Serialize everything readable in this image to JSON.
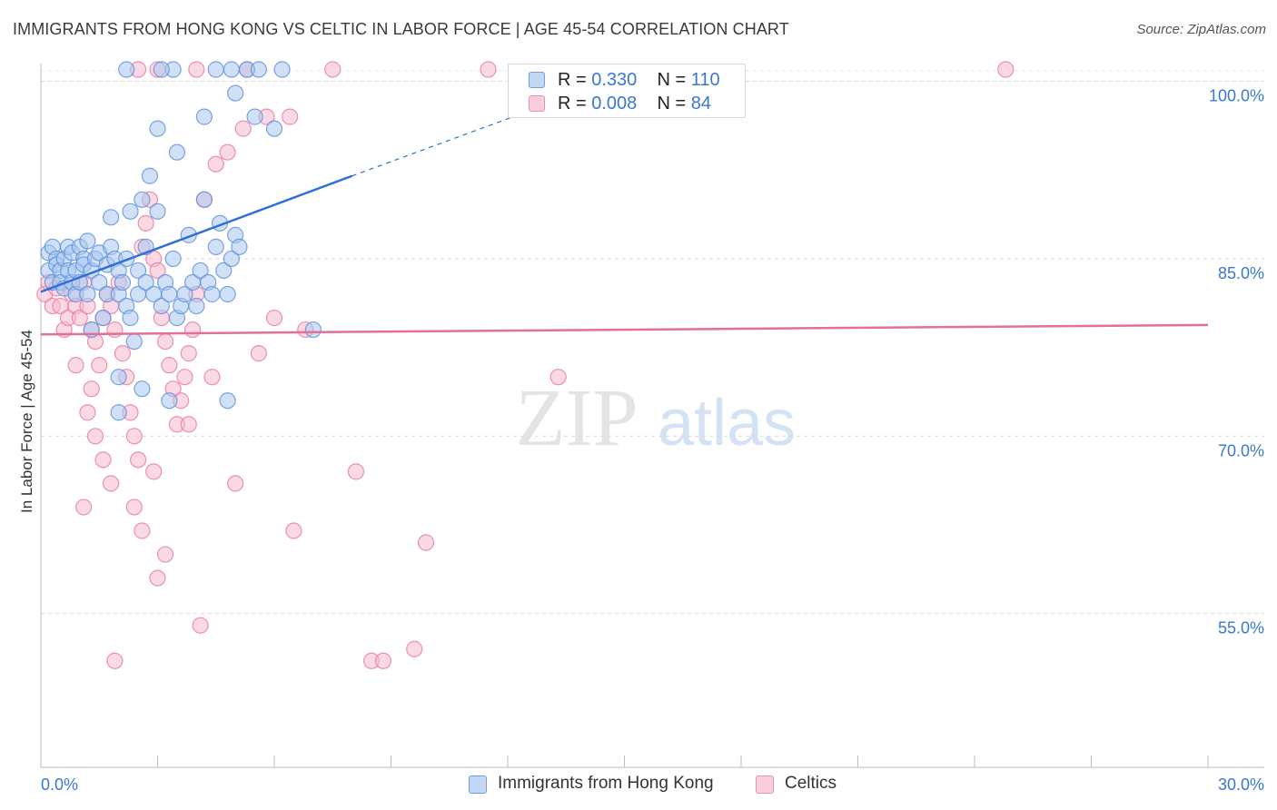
{
  "title": "IMMIGRANTS FROM HONG KONG VS CELTIC IN LABOR FORCE | AGE 45-54 CORRELATION CHART",
  "source": "Source: ZipAtlas.com",
  "watermark": {
    "zip": "ZIP",
    "atlas": "atlas"
  },
  "legend_top": [
    {
      "r_label": "R =",
      "r_value": "0.330",
      "n_label": "N =",
      "n_value": "110"
    },
    {
      "r_label": "R =",
      "r_value": "0.008",
      "n_label": "N =",
      "n_value": "84"
    }
  ],
  "legend_bottom": [
    {
      "label": "Immigrants from Hong Kong"
    },
    {
      "label": "Celtics"
    }
  ],
  "colors": {
    "blue_fill": "#aac8f0",
    "blue_stroke": "#5b8fdc",
    "blue_line": "#2f6fd6",
    "pink_fill": "#f6b9cd",
    "pink_stroke": "#e7799e",
    "pink_line": "#e46f97",
    "grid": "#d9d9d9",
    "axis_label": "#3a78d0"
  },
  "chart_data": {
    "type": "scatter",
    "title": "IMMIGRANTS FROM HONG KONG VS CELTIC IN LABOR FORCE | AGE 45-54 CORRELATION CHART",
    "xlabel": "",
    "ylabel": "In Labor Force | Age 45-54",
    "xlim": [
      0,
      30
    ],
    "ylim": [
      42,
      101.5
    ],
    "x_tick_labels": [
      "0.0%",
      "30.0%"
    ],
    "y_tick_labels": [
      "55.0%",
      "70.0%",
      "85.0%",
      "100.0%"
    ],
    "y_ticks": [
      55,
      70,
      85,
      100
    ],
    "series": [
      {
        "name": "Immigrants from Hong Kong",
        "r": 0.33,
        "n": 110,
        "trend": {
          "solid": [
            [
              0,
              82.2
            ],
            [
              8,
              92.0
            ]
          ],
          "dashed": [
            [
              8,
              92.0
            ],
            [
              12.8,
              97.8
            ]
          ]
        },
        "points": [
          [
            0.2,
            85.5
          ],
          [
            0.2,
            84
          ],
          [
            0.3,
            83
          ],
          [
            0.3,
            86
          ],
          [
            0.4,
            85
          ],
          [
            0.4,
            84.5
          ],
          [
            0.5,
            84
          ],
          [
            0.5,
            83
          ],
          [
            0.6,
            82.5
          ],
          [
            0.6,
            85
          ],
          [
            0.7,
            84
          ],
          [
            0.7,
            86
          ],
          [
            0.8,
            83
          ],
          [
            0.8,
            85.5
          ],
          [
            0.9,
            84
          ],
          [
            0.9,
            82
          ],
          [
            1.0,
            86
          ],
          [
            1.0,
            83
          ],
          [
            1.1,
            85
          ],
          [
            1.1,
            84.5
          ],
          [
            1.2,
            86.5
          ],
          [
            1.2,
            82
          ],
          [
            1.3,
            84
          ],
          [
            1.3,
            79
          ],
          [
            1.4,
            85
          ],
          [
            1.5,
            83
          ],
          [
            1.5,
            85.5
          ],
          [
            1.6,
            80
          ],
          [
            1.7,
            82
          ],
          [
            1.7,
            84.5
          ],
          [
            1.8,
            88.5
          ],
          [
            1.8,
            86
          ],
          [
            1.9,
            85
          ],
          [
            2.0,
            82
          ],
          [
            2.0,
            84
          ],
          [
            2.1,
            83
          ],
          [
            2.2,
            81
          ],
          [
            2.2,
            85
          ],
          [
            2.3,
            89
          ],
          [
            2.3,
            80
          ],
          [
            2.4,
            78
          ],
          [
            2.5,
            82
          ],
          [
            2.5,
            84
          ],
          [
            2.6,
            90
          ],
          [
            2.7,
            83
          ],
          [
            2.7,
            86
          ],
          [
            2.8,
            92
          ],
          [
            2.9,
            82
          ],
          [
            3.0,
            89
          ],
          [
            3.1,
            81
          ],
          [
            3.2,
            83
          ],
          [
            3.3,
            82
          ],
          [
            3.4,
            85
          ],
          [
            3.5,
            80
          ],
          [
            3.6,
            81
          ],
          [
            3.7,
            82
          ],
          [
            3.8,
            87
          ],
          [
            3.9,
            83
          ],
          [
            4.0,
            81
          ],
          [
            4.1,
            84
          ],
          [
            4.2,
            90
          ],
          [
            4.3,
            83
          ],
          [
            4.4,
            82
          ],
          [
            4.5,
            86
          ],
          [
            4.6,
            88
          ],
          [
            4.7,
            84
          ],
          [
            4.8,
            82
          ],
          [
            4.9,
            85
          ],
          [
            5.0,
            87
          ],
          [
            5.1,
            86
          ],
          [
            3.5,
            94
          ],
          [
            3.0,
            96
          ],
          [
            4.2,
            97
          ],
          [
            5.5,
            97
          ],
          [
            6.0,
            96
          ],
          [
            5.0,
            99
          ],
          [
            4.5,
            101
          ],
          [
            5.3,
            101
          ],
          [
            6.2,
            101
          ],
          [
            3.4,
            101
          ],
          [
            4.9,
            101
          ],
          [
            5.6,
            101
          ],
          [
            2.2,
            101
          ],
          [
            3.1,
            101
          ],
          [
            7.0,
            79
          ],
          [
            2.0,
            75
          ],
          [
            3.3,
            73
          ],
          [
            2.6,
            74
          ],
          [
            4.8,
            73
          ],
          [
            2.0,
            72
          ]
        ],
        "stated_n_note": "approximate subset"
      },
      {
        "name": "Celtics",
        "r": 0.008,
        "n": 84,
        "trend": {
          "solid": [
            [
              0,
              78.6
            ],
            [
              30,
              79.4
            ]
          ]
        },
        "points": [
          [
            0.1,
            82
          ],
          [
            0.2,
            83
          ],
          [
            0.3,
            81
          ],
          [
            0.4,
            82.5
          ],
          [
            0.5,
            81
          ],
          [
            0.6,
            79
          ],
          [
            0.7,
            80
          ],
          [
            0.8,
            82
          ],
          [
            0.9,
            81
          ],
          [
            1.0,
            80
          ],
          [
            1.1,
            83
          ],
          [
            1.2,
            81
          ],
          [
            1.3,
            79
          ],
          [
            1.4,
            78
          ],
          [
            1.5,
            76
          ],
          [
            1.6,
            80
          ],
          [
            1.7,
            82
          ],
          [
            1.8,
            81
          ],
          [
            1.9,
            79
          ],
          [
            2.0,
            83
          ],
          [
            2.1,
            77
          ],
          [
            2.2,
            75
          ],
          [
            2.3,
            72
          ],
          [
            2.4,
            70
          ],
          [
            2.5,
            68
          ],
          [
            2.6,
            86
          ],
          [
            2.7,
            88
          ],
          [
            2.8,
            90
          ],
          [
            2.9,
            85
          ],
          [
            3.0,
            84
          ],
          [
            3.1,
            80
          ],
          [
            3.2,
            78
          ],
          [
            3.3,
            76
          ],
          [
            3.4,
            74
          ],
          [
            3.5,
            71
          ],
          [
            3.6,
            73
          ],
          [
            3.7,
            75
          ],
          [
            3.8,
            77
          ],
          [
            3.9,
            79
          ],
          [
            4.0,
            82
          ],
          [
            4.2,
            90
          ],
          [
            4.5,
            93
          ],
          [
            4.8,
            94
          ],
          [
            5.2,
            96
          ],
          [
            5.8,
            97
          ],
          [
            6.4,
            97
          ],
          [
            2.5,
            101
          ],
          [
            3.0,
            101
          ],
          [
            4.0,
            101
          ],
          [
            5.3,
            101
          ],
          [
            7.5,
            101
          ],
          [
            11.5,
            101
          ],
          [
            24.8,
            101
          ],
          [
            1.2,
            72
          ],
          [
            1.4,
            70
          ],
          [
            1.6,
            68
          ],
          [
            1.8,
            66
          ],
          [
            2.4,
            64
          ],
          [
            2.6,
            62
          ],
          [
            3.2,
            60
          ],
          [
            3.0,
            58
          ],
          [
            5.0,
            66
          ],
          [
            6.5,
            62
          ],
          [
            8.1,
            67
          ],
          [
            9.9,
            61
          ],
          [
            13.3,
            75
          ],
          [
            4.1,
            54
          ],
          [
            1.9,
            51
          ],
          [
            8.5,
            51
          ],
          [
            8.8,
            51
          ],
          [
            9.6,
            52
          ],
          [
            1.1,
            64
          ],
          [
            2.9,
            67
          ],
          [
            3.8,
            71
          ],
          [
            4.4,
            75
          ],
          [
            5.6,
            77
          ],
          [
            6.0,
            80
          ],
          [
            6.8,
            79
          ],
          [
            0.9,
            76
          ],
          [
            1.3,
            74
          ]
        ]
      }
    ],
    "axis_titles": {
      "y": "In Labor Force | Age 45-54"
    }
  }
}
